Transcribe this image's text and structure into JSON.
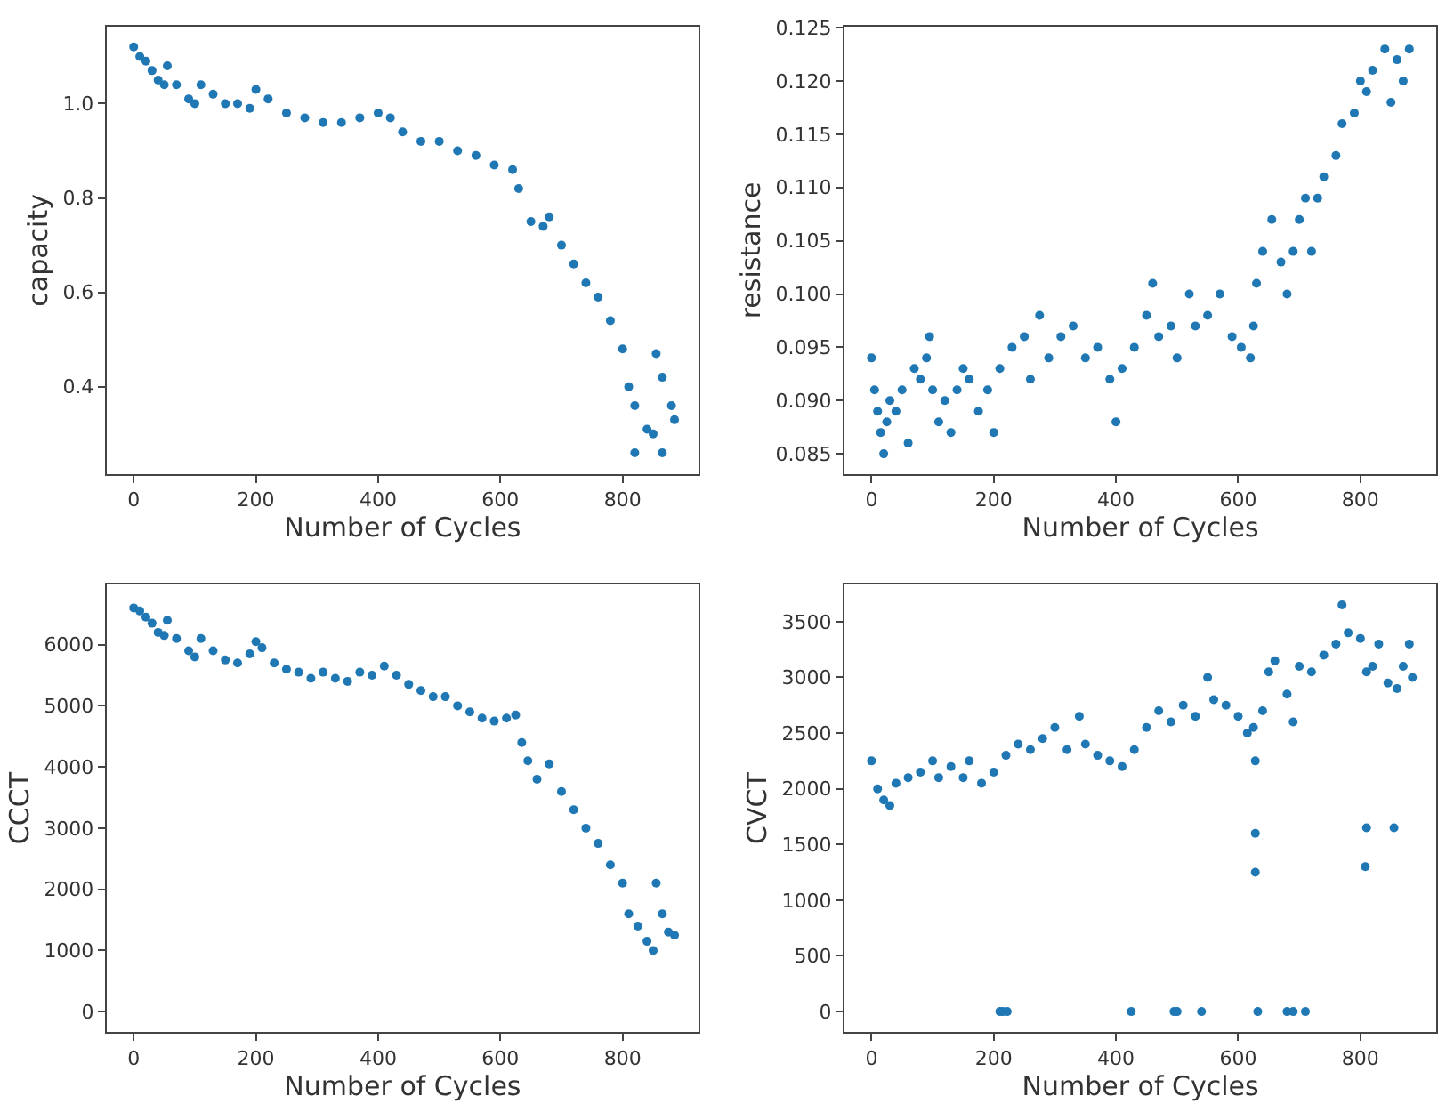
{
  "chart_data": [
    {
      "type": "scatter",
      "xlabel": "Number of Cycles",
      "ylabel": "capacity",
      "xlim": [
        -44,
        924
      ],
      "xticks": [
        0,
        200,
        400,
        600,
        800
      ],
      "ylim": [
        0.215,
        1.163
      ],
      "yticks": [
        0.4,
        0.6,
        0.8,
        {
          "value": 1.0,
          "label": "1.0"
        }
      ],
      "marker": "circle",
      "series": [
        {
          "color": "#1f77b4",
          "x": [
            0,
            10,
            20,
            30,
            40,
            50,
            55,
            70,
            90,
            100,
            110,
            130,
            150,
            170,
            190,
            200,
            220,
            250,
            280,
            310,
            340,
            370,
            400,
            420,
            440,
            470,
            500,
            530,
            560,
            590,
            620,
            630,
            650,
            670,
            680,
            700,
            720,
            740,
            760,
            780,
            800,
            810,
            820,
            840,
            850,
            820,
            855,
            865,
            880,
            885,
            865
          ],
          "values": [
            1.12,
            1.1,
            1.09,
            1.07,
            1.05,
            1.04,
            1.08,
            1.04,
            1.01,
            1.0,
            1.04,
            1.02,
            1.0,
            1.0,
            0.99,
            1.03,
            1.01,
            0.98,
            0.97,
            0.96,
            0.96,
            0.97,
            0.98,
            0.97,
            0.94,
            0.92,
            0.92,
            0.9,
            0.89,
            0.87,
            0.86,
            0.82,
            0.75,
            0.74,
            0.76,
            0.7,
            0.66,
            0.62,
            0.59,
            0.54,
            0.48,
            0.4,
            0.36,
            0.31,
            0.3,
            0.26,
            0.47,
            0.42,
            0.36,
            0.33,
            0.26
          ]
        }
      ]
    },
    {
      "type": "scatter",
      "xlabel": "Number of Cycles",
      "ylabel": "resistance",
      "xlim": [
        -44,
        924
      ],
      "xticks": [
        0,
        200,
        400,
        600,
        800
      ],
      "ylim": [
        0.0831,
        0.1251
      ],
      "yticks": [
        {
          "value": 0.085,
          "label": "0.085"
        },
        {
          "value": 0.09,
          "label": "0.090"
        },
        {
          "value": 0.095,
          "label": "0.095"
        },
        {
          "value": 0.1,
          "label": "0.100"
        },
        {
          "value": 0.105,
          "label": "0.105"
        },
        {
          "value": 0.11,
          "label": "0.110"
        },
        {
          "value": 0.115,
          "label": "0.115"
        },
        {
          "value": 0.12,
          "label": "0.120"
        },
        {
          "value": 0.125,
          "label": "0.125"
        }
      ],
      "marker": "circle",
      "series": [
        {
          "color": "#1f77b4",
          "x": [
            0,
            5,
            10,
            15,
            20,
            25,
            30,
            40,
            50,
            60,
            70,
            80,
            90,
            95,
            100,
            110,
            120,
            130,
            140,
            150,
            160,
            175,
            190,
            200,
            210,
            230,
            250,
            260,
            275,
            290,
            310,
            330,
            350,
            370,
            390,
            400,
            410,
            430,
            450,
            460,
            470,
            490,
            500,
            520,
            530,
            550,
            570,
            590,
            605,
            620,
            625,
            630,
            640,
            655,
            670,
            680,
            690,
            700,
            710,
            720,
            730,
            740,
            760,
            770,
            790,
            800,
            810,
            820,
            840,
            850,
            860,
            870,
            880
          ],
          "values": [
            0.094,
            0.091,
            0.089,
            0.087,
            0.085,
            0.088,
            0.09,
            0.089,
            0.091,
            0.086,
            0.093,
            0.092,
            0.094,
            0.096,
            0.091,
            0.088,
            0.09,
            0.087,
            0.091,
            0.093,
            0.092,
            0.089,
            0.091,
            0.087,
            0.093,
            0.095,
            0.096,
            0.092,
            0.098,
            0.094,
            0.096,
            0.097,
            0.094,
            0.095,
            0.092,
            0.088,
            0.093,
            0.095,
            0.098,
            0.101,
            0.096,
            0.097,
            0.094,
            0.1,
            0.097,
            0.098,
            0.1,
            0.096,
            0.095,
            0.094,
            0.097,
            0.101,
            0.104,
            0.107,
            0.103,
            0.1,
            0.104,
            0.107,
            0.109,
            0.104,
            0.109,
            0.111,
            0.113,
            0.116,
            0.117,
            0.12,
            0.119,
            0.121,
            0.123,
            0.118,
            0.122,
            0.12,
            0.123
          ]
        }
      ]
    },
    {
      "type": "scatter",
      "xlabel": "Number of Cycles",
      "ylabel": "CCCT",
      "xlim": [
        -44,
        924
      ],
      "xticks": [
        0,
        200,
        400,
        600,
        800
      ],
      "ylim": [
        -332,
        6982
      ],
      "yticks": [
        0,
        1000,
        2000,
        3000,
        4000,
        5000,
        6000
      ],
      "marker": "circle",
      "series": [
        {
          "color": "#1f77b4",
          "x": [
            0,
            10,
            20,
            30,
            40,
            50,
            55,
            70,
            90,
            100,
            110,
            130,
            150,
            170,
            190,
            200,
            210,
            230,
            250,
            270,
            290,
            310,
            330,
            350,
            370,
            390,
            410,
            430,
            450,
            470,
            490,
            510,
            530,
            550,
            570,
            590,
            610,
            625,
            635,
            645,
            660,
            680,
            700,
            720,
            740,
            760,
            780,
            800,
            810,
            825,
            840,
            850,
            855,
            865,
            875,
            885
          ],
          "values": [
            6600,
            6550,
            6450,
            6350,
            6200,
            6150,
            6400,
            6100,
            5900,
            5800,
            6100,
            5900,
            5750,
            5700,
            5850,
            6050,
            5950,
            5700,
            5600,
            5550,
            5450,
            5550,
            5450,
            5400,
            5550,
            5500,
            5650,
            5500,
            5350,
            5250,
            5150,
            5150,
            5000,
            4900,
            4800,
            4750,
            4800,
            4850,
            4400,
            4100,
            3800,
            4050,
            3600,
            3300,
            3000,
            2750,
            2400,
            2100,
            1600,
            1400,
            1150,
            1000,
            2100,
            1600,
            1300,
            1250
          ]
        }
      ]
    },
    {
      "type": "scatter",
      "xlabel": "Number of Cycles",
      "ylabel": "CVCT",
      "xlim": [
        -44,
        924
      ],
      "xticks": [
        0,
        200,
        400,
        600,
        800
      ],
      "ylim": [
        -183,
        3833
      ],
      "yticks": [
        0,
        500,
        1000,
        1500,
        2000,
        2500,
        3000,
        3500
      ],
      "marker": "circle",
      "series": [
        {
          "color": "#1f77b4",
          "x": [
            0,
            10,
            20,
            30,
            40,
            60,
            80,
            100,
            110,
            130,
            150,
            160,
            180,
            200,
            220,
            240,
            260,
            280,
            300,
            320,
            340,
            350,
            370,
            390,
            410,
            430,
            450,
            470,
            490,
            510,
            530,
            550,
            560,
            580,
            600,
            615,
            625,
            628,
            628,
            628,
            640,
            650,
            660,
            680,
            690,
            700,
            720,
            740,
            760,
            770,
            780,
            800,
            810,
            820,
            830,
            845,
            860,
            870,
            880,
            885,
            808,
            810,
            855,
            210,
            215,
            222,
            425,
            495,
            500,
            540,
            632,
            680,
            690,
            710
          ],
          "values": [
            2250,
            2000,
            1900,
            1850,
            2050,
            2100,
            2150,
            2250,
            2100,
            2200,
            2100,
            2250,
            2050,
            2150,
            2300,
            2400,
            2350,
            2450,
            2550,
            2350,
            2650,
            2400,
            2300,
            2250,
            2200,
            2350,
            2550,
            2700,
            2600,
            2750,
            2650,
            3000,
            2800,
            2750,
            2650,
            2500,
            2550,
            2250,
            1600,
            1250,
            2700,
            3050,
            3150,
            2850,
            2600,
            3100,
            3050,
            3200,
            3300,
            3650,
            3400,
            3350,
            3050,
            3100,
            3300,
            2950,
            2900,
            3100,
            3300,
            3000,
            1300,
            1650,
            1650,
            0,
            0,
            0,
            0,
            0,
            0,
            0,
            0,
            0,
            0,
            0
          ]
        }
      ]
    }
  ]
}
